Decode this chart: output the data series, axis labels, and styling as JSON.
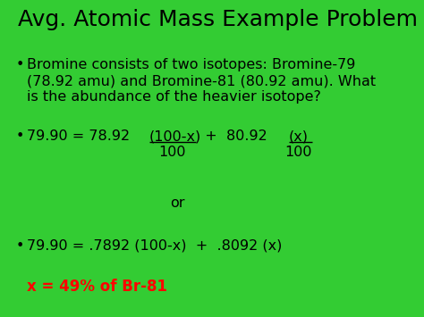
{
  "bg_color": "#33cc33",
  "title": "Avg. Atomic Mass Example Problem",
  "title_fontsize": 18,
  "title_color": "black",
  "bullet_color": "black",
  "bullet_fontsize": 11.5,
  "line4_text": "79.90 = .7892 (100-x)  +  .8092 (x)",
  "line5_text": "x = 49% of Br-81",
  "line5_color": "red",
  "line5_fontsize": 12,
  "or_text": "or"
}
